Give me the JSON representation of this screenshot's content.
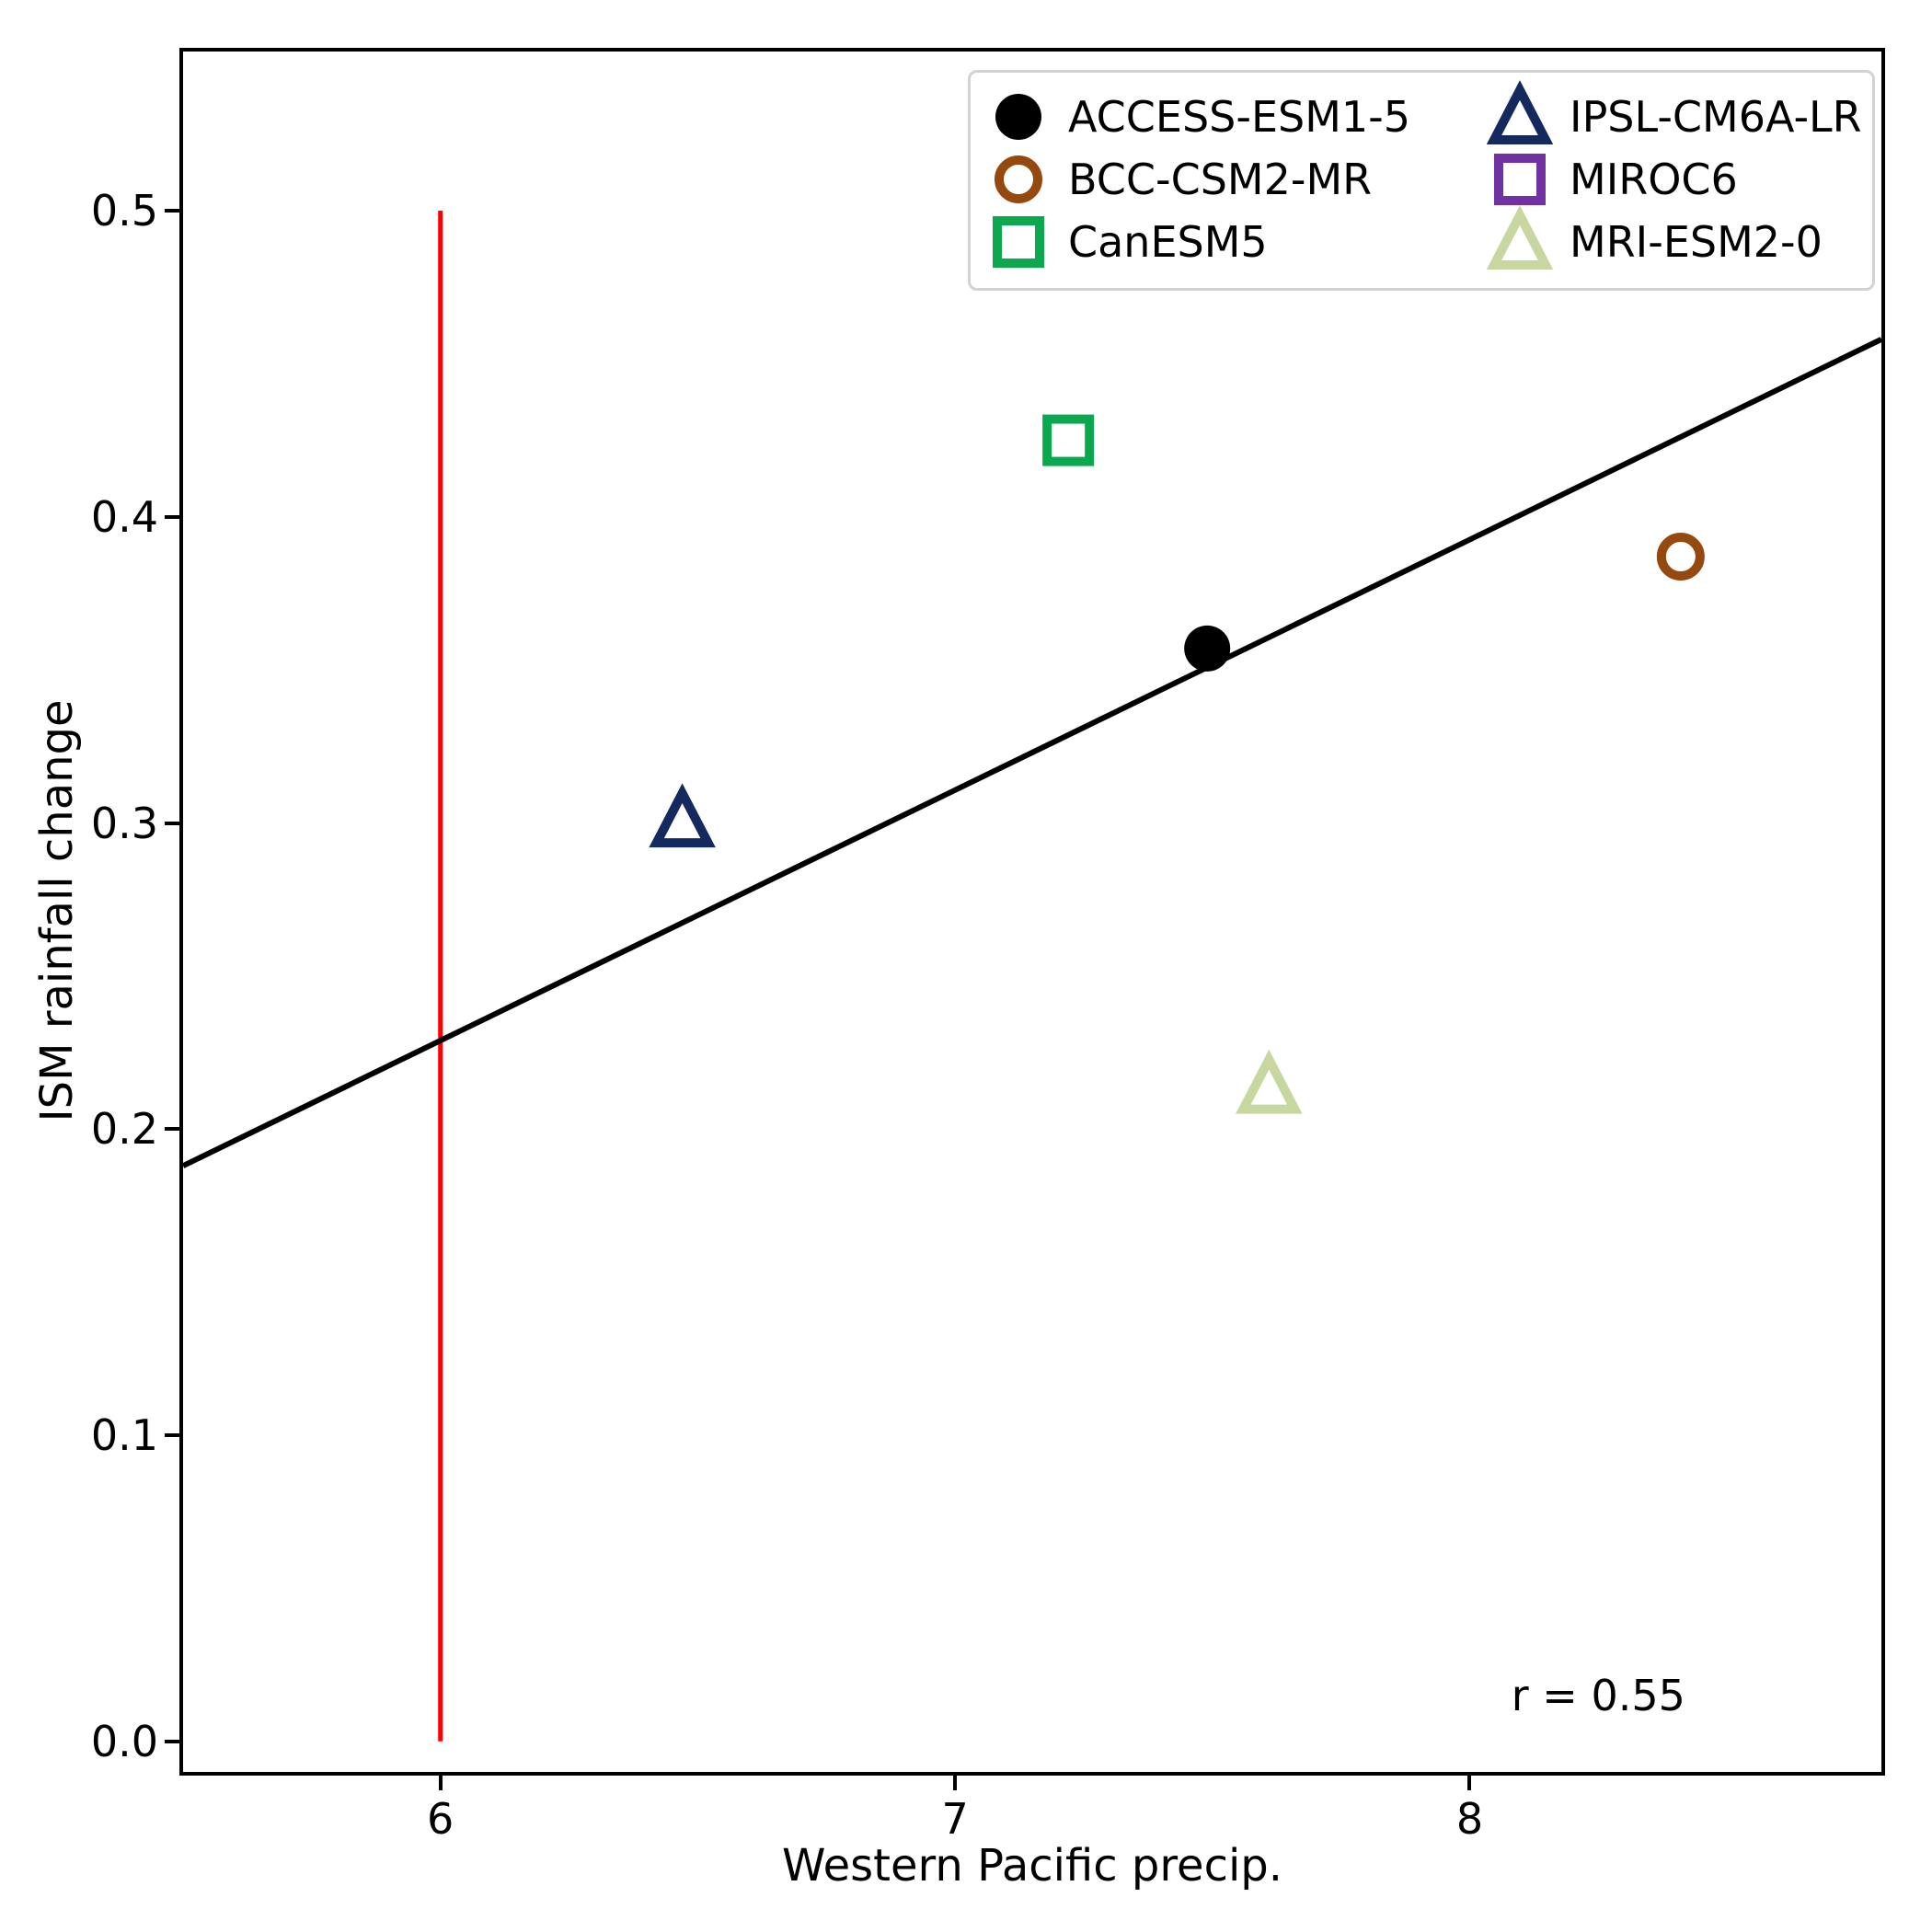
{
  "figure": {
    "background": "#ffffff",
    "spine_color": "#000000"
  },
  "chart_data": {
    "type": "scatter",
    "title": "",
    "xlabel": "Western Pacific precip.",
    "ylabel": "ISM rainfall change",
    "xlim": [
      5.5,
      8.8
    ],
    "ylim": [
      -0.01,
      0.552
    ],
    "xticks": [
      {
        "value": 6,
        "label": "6"
      },
      {
        "value": 7,
        "label": "7"
      },
      {
        "value": 8,
        "label": "8"
      }
    ],
    "yticks": [
      {
        "value": 0.0,
        "label": "0.0"
      },
      {
        "value": 0.1,
        "label": "0.1"
      },
      {
        "value": 0.2,
        "label": "0.2"
      },
      {
        "value": 0.3,
        "label": "0.3"
      },
      {
        "value": 0.4,
        "label": "0.4"
      },
      {
        "value": 0.5,
        "label": "0.5"
      }
    ],
    "grid": false,
    "legend_position": "upper right",
    "series": [
      {
        "name": "ACCESS-ESM1-5",
        "marker": "circle",
        "style": "filled",
        "color": "#000000",
        "x": 7.49,
        "y": 0.357,
        "point_visible": true
      },
      {
        "name": "BCC-CSM2-MR",
        "marker": "circle",
        "style": "open",
        "color": "#96490e",
        "x": 8.41,
        "y": 0.387,
        "point_visible": true
      },
      {
        "name": "CanESM5",
        "marker": "square",
        "style": "open",
        "color": "#0ba84f",
        "x": 7.22,
        "y": 0.425,
        "point_visible": true
      },
      {
        "name": "IPSL-CM6A-LR",
        "marker": "triangle",
        "style": "open",
        "color": "#14295e",
        "x": 6.47,
        "y": 0.301,
        "point_visible": true
      },
      {
        "name": "MIROC6",
        "marker": "square",
        "style": "open",
        "color": "#7231a2",
        "x": null,
        "y": null,
        "point_visible": false
      },
      {
        "name": "MRI-ESM2-0",
        "marker": "triangle",
        "style": "open",
        "color": "#c8d6a0",
        "x": 7.61,
        "y": 0.214,
        "point_visible": true
      }
    ],
    "regression_line": {
      "x1": 5.5,
      "y1": 0.188,
      "x2": 8.8,
      "y2": 0.458,
      "color": "#000000"
    },
    "reference_line": {
      "x": 6.0,
      "y1": 0.0,
      "y2": 0.5,
      "color": "#ff0000"
    },
    "annotation": {
      "text": "r = 0.55",
      "x": 8.25,
      "y": 0.015
    }
  }
}
